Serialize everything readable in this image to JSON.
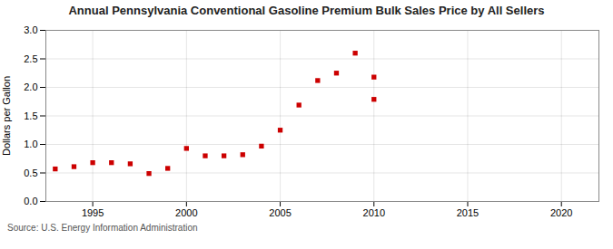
{
  "chart_data": {
    "type": "scatter",
    "title": "Annual Pennsylvania Conventional Gasoline Premium Bulk Sales Price by All Sellers",
    "ylabel": "Dollars per Gallon",
    "source": "Source: U.S. Energy Information Administration",
    "x": [
      1993,
      1994,
      1995,
      1996,
      1997,
      1998,
      1999,
      2000,
      2001,
      2002,
      2003,
      2004,
      2005,
      2006,
      2007,
      2008,
      2009,
      2010,
      2010
    ],
    "values": [
      0.57,
      0.61,
      0.68,
      0.68,
      0.66,
      0.49,
      0.58,
      0.93,
      0.8,
      0.8,
      0.82,
      0.97,
      1.25,
      1.69,
      2.12,
      2.25,
      2.6,
      1.79,
      2.18
    ],
    "color": "#cc0000",
    "marker": "square",
    "xlim": [
      1992.5,
      2022
    ],
    "ylim": [
      0.0,
      3.0
    ],
    "xticks": [
      1995,
      2000,
      2005,
      2010,
      2015,
      2020
    ],
    "yticks": [
      {
        "value": 0.0,
        "label": "0.0"
      },
      0.5,
      {
        "value": 1.0,
        "label": "1.0"
      },
      1.5,
      {
        "value": 2.0,
        "label": "2.0"
      },
      2.5,
      {
        "value": 3.0,
        "label": "3.0"
      }
    ],
    "grid": true
  }
}
